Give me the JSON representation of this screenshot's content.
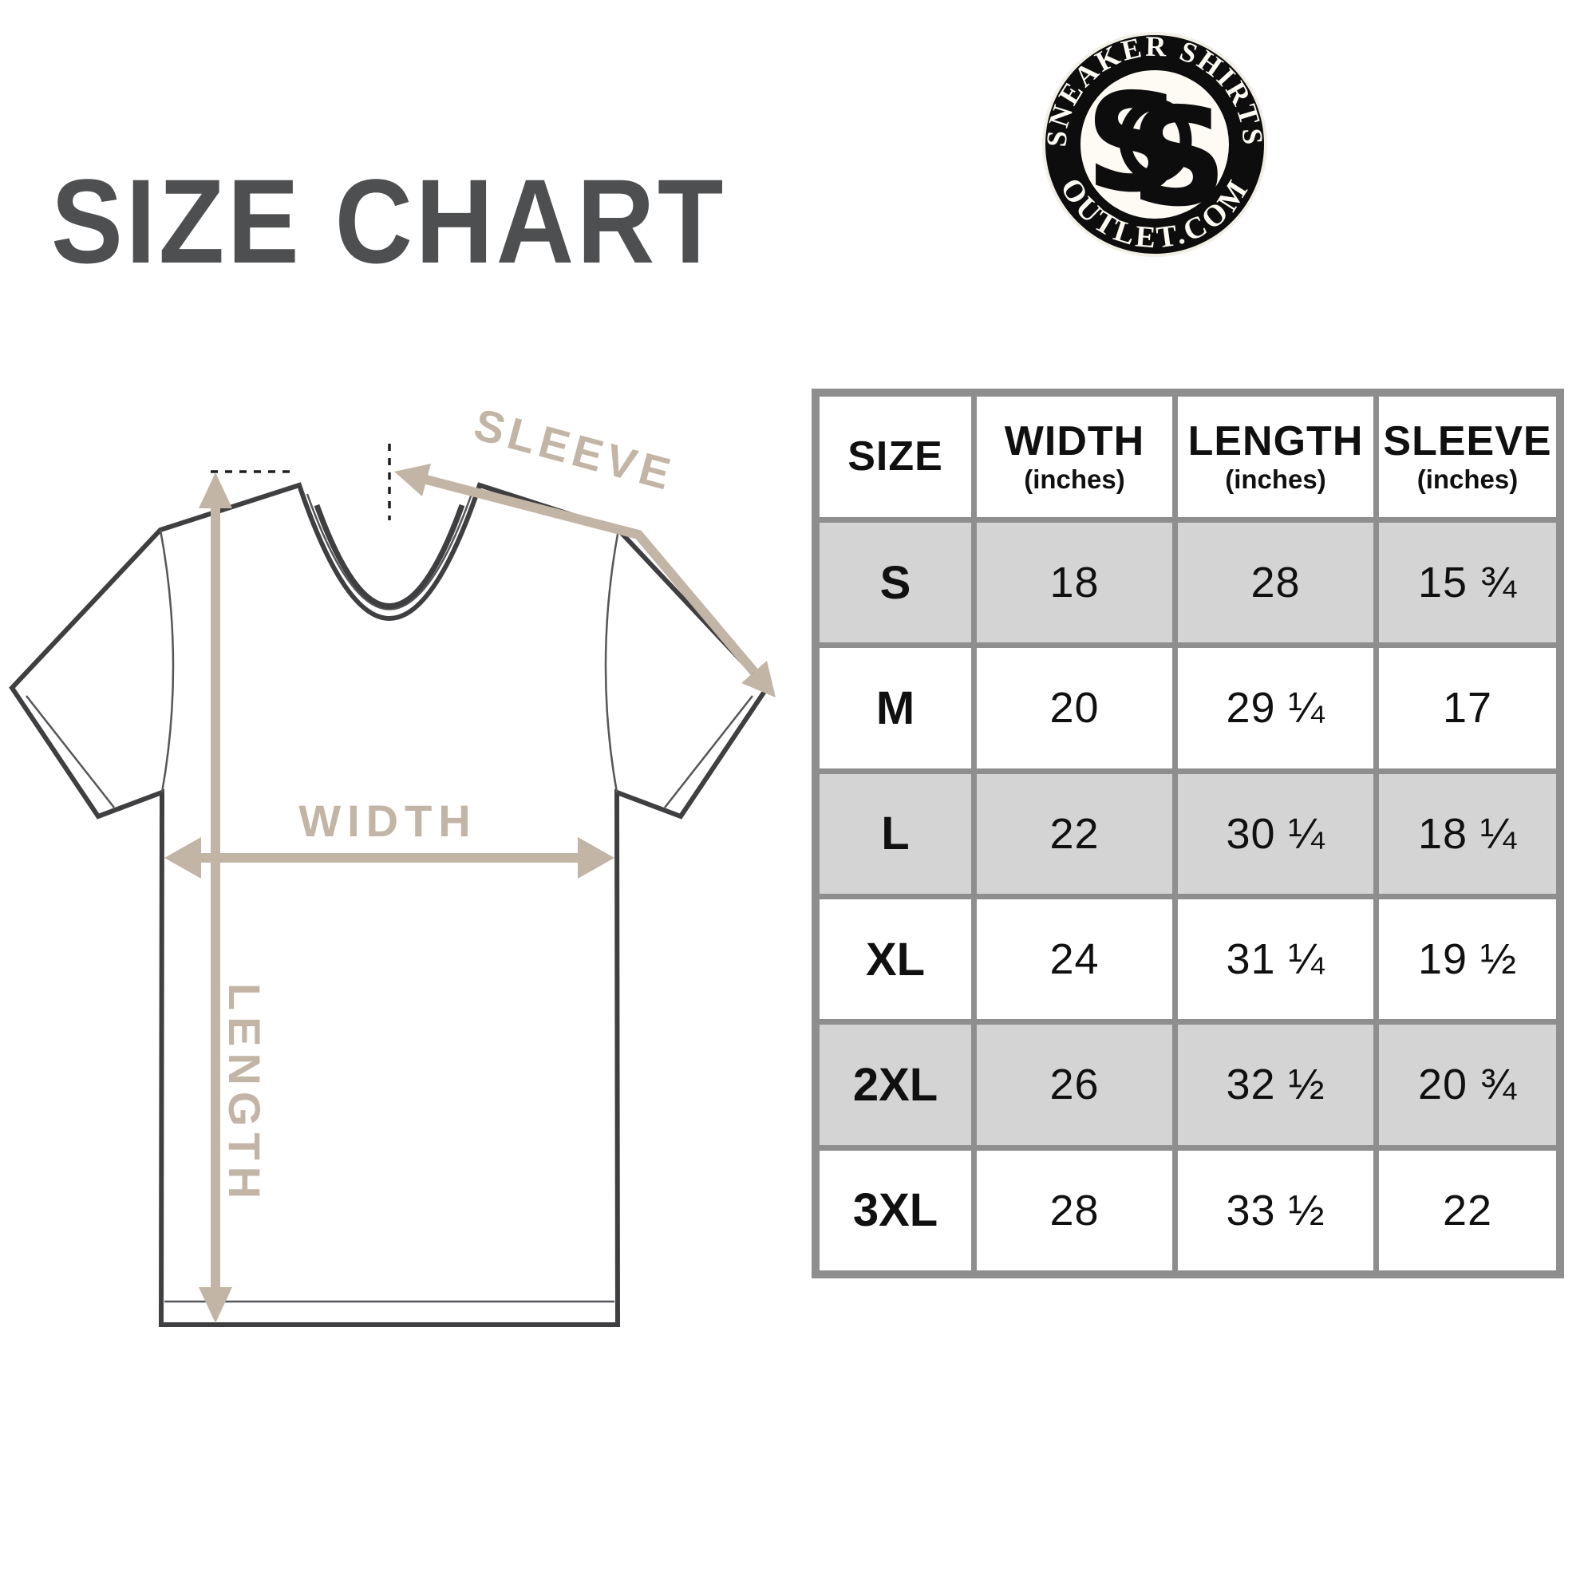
{
  "title": "SIZE CHART",
  "logo": {
    "arc_top": "SNEAKER SHIRTS",
    "arc_bottom": "OUTLET.COM",
    "monogram_s1": "S",
    "monogram_s2": "S"
  },
  "diagram": {
    "sleeve_label": "SLEEVE",
    "width_label": "WIDTH",
    "length_label": "LENGTH"
  },
  "table": {
    "headers": [
      {
        "label": "SIZE",
        "sub": ""
      },
      {
        "label": "WIDTH",
        "sub": "(inches)"
      },
      {
        "label": "LENGTH",
        "sub": "(inches)"
      },
      {
        "label": "SLEEVE",
        "sub": "(inches)"
      }
    ],
    "rows": [
      {
        "size": "S",
        "width": "18",
        "length": "28",
        "sleeve": "15 ¾"
      },
      {
        "size": "M",
        "width": "20",
        "length": "29 ¼",
        "sleeve": "17"
      },
      {
        "size": "L",
        "width": "22",
        "length": "30 ¼",
        "sleeve": "18 ¼"
      },
      {
        "size": "XL",
        "width": "24",
        "length": "31 ¼",
        "sleeve": "19 ½"
      },
      {
        "size": "2XL",
        "width": "26",
        "length": "32 ½",
        "sleeve": "20 ¾"
      },
      {
        "size": "3XL",
        "width": "28",
        "length": "33 ½",
        "sleeve": "22"
      }
    ]
  },
  "colors": {
    "accent_tan": "#c3b5a5",
    "title_gray": "#4e4f51",
    "table_border_gray": "#8e8e8e",
    "row_gray": "#d4d4d4",
    "logo_black": "#0d0d0d"
  },
  "chart_data": {
    "type": "table",
    "title": "SIZE CHART",
    "columns": [
      "SIZE",
      "WIDTH (inches)",
      "LENGTH (inches)",
      "SLEEVE (inches)"
    ],
    "rows": [
      [
        "S",
        18,
        28,
        15.75
      ],
      [
        "M",
        20,
        29.25,
        17
      ],
      [
        "L",
        22,
        30.25,
        18.25
      ],
      [
        "XL",
        24,
        31.25,
        19.5
      ],
      [
        "2XL",
        26,
        32.5,
        20.75
      ],
      [
        "3XL",
        28,
        33.5,
        22
      ]
    ]
  }
}
